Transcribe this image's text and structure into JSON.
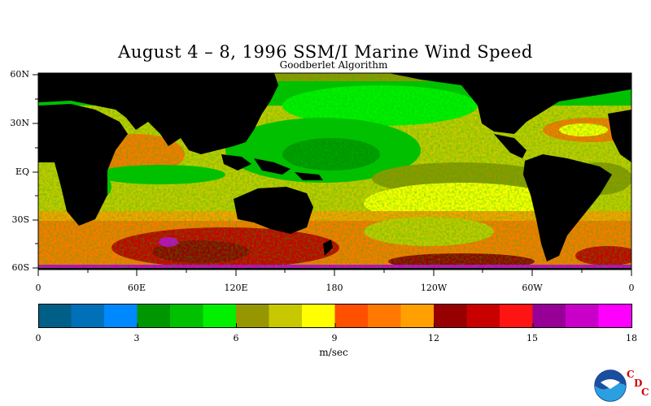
{
  "title": "August 4 – 8, 1996 SSM/I Marine Wind Speed",
  "subtitle": "Goodberlet Algorithm",
  "lat_labels": [
    "60N",
    "30N",
    "EQ",
    "30S",
    "60S"
  ],
  "lon_labels": [
    "0",
    "60E",
    "120E",
    "180",
    "120W",
    "60W",
    "0"
  ],
  "colorbar": {
    "colors": [
      "#005f87",
      "#0070b8",
      "#0088ff",
      "#009600",
      "#00c000",
      "#00f000",
      "#969600",
      "#c8c800",
      "#ffff00",
      "#ff5000",
      "#ff7800",
      "#ffa000",
      "#960000",
      "#c80000",
      "#ff1414",
      "#960096",
      "#c800c8",
      "#ff00ff"
    ],
    "tick_labels": [
      "0",
      "3",
      "6",
      "9",
      "12",
      "15",
      "18"
    ],
    "units": "m/sec"
  },
  "logo": {
    "agency": "NOAA",
    "letters": [
      "C",
      "D",
      "C"
    ]
  }
}
